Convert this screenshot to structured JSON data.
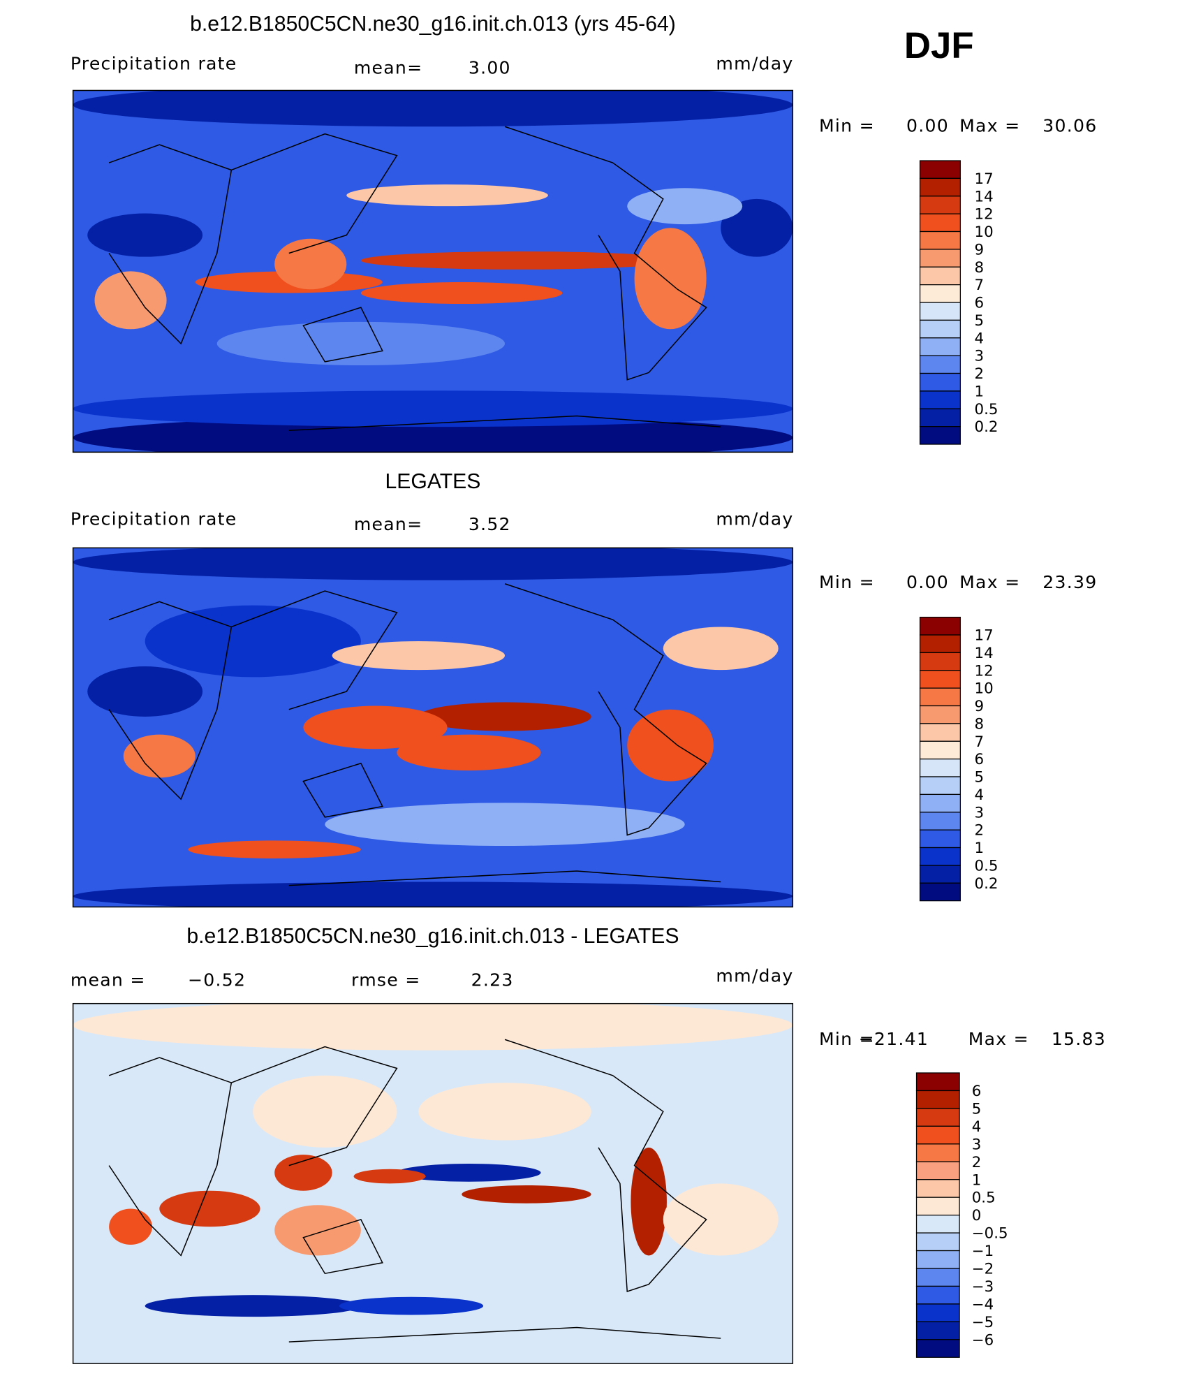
{
  "season": "DJF",
  "panels": [
    {
      "title": "b.e12.B1850C5CN.ne30_g16.init.ch.013 (yrs 45-64)",
      "left_label": "Precipitation  rate",
      "mean_label": "mean=",
      "mean": "3.00",
      "units": "mm/day",
      "min_label": "Min =",
      "min": "0.00",
      "max_label": "Max =",
      "max": "30.06",
      "colorbar": {
        "labels": [
          "17",
          "14",
          "12",
          "10",
          "9",
          "8",
          "7",
          "6",
          "5",
          "4",
          "3",
          "2",
          "1",
          "0.5",
          "0.2"
        ],
        "colors": [
          "#8b0000",
          "#b22000",
          "#d63a10",
          "#f0501e",
          "#f57845",
          "#f79a70",
          "#fbc7a8",
          "#fdebd8",
          "#d6e6f8",
          "#b5cff7",
          "#8fb0f5",
          "#5d86ef",
          "#2e5ae6",
          "#0a33cc",
          "#0420a5",
          "#010c80"
        ]
      }
    },
    {
      "title": "LEGATES",
      "left_label": "Precipitation  rate",
      "mean_label": "mean=",
      "mean": "3.52",
      "units": "mm/day",
      "min_label": "Min =",
      "min": "0.00",
      "max_label": "Max =",
      "max": "23.39",
      "colorbar": {
        "labels": [
          "17",
          "14",
          "12",
          "10",
          "9",
          "8",
          "7",
          "6",
          "5",
          "4",
          "3",
          "2",
          "1",
          "0.5",
          "0.2"
        ],
        "colors": [
          "#8b0000",
          "#b22000",
          "#d63a10",
          "#f0501e",
          "#f57845",
          "#f79a70",
          "#fbc7a8",
          "#fdebd8",
          "#d6e6f8",
          "#b5cff7",
          "#8fb0f5",
          "#5d86ef",
          "#2e5ae6",
          "#0a33cc",
          "#0420a5",
          "#010c80"
        ]
      }
    },
    {
      "title": "b.e12.B1850C5CN.ne30_g16.init.ch.013 - LEGATES",
      "mean_label": "mean =",
      "mean": "−0.52",
      "rmse_label": "rmse =",
      "rmse": "2.23",
      "units": "mm/day",
      "min_label": "Min =",
      "min": "−21.41",
      "max_label": "Max =",
      "max": "15.83",
      "colorbar": {
        "labels": [
          "6",
          "5",
          "4",
          "3",
          "2",
          "1",
          "0.5",
          "0",
          "−0.5",
          "−1",
          "−2",
          "−3",
          "−4",
          "−5",
          "−6"
        ],
        "colors": [
          "#8b0000",
          "#b22000",
          "#d63a10",
          "#f0501e",
          "#f57845",
          "#f8a080",
          "#fbc7a8",
          "#fde8d6",
          "#d8e8f8",
          "#b5cff7",
          "#8fb0f5",
          "#5d86ef",
          "#2e5ae6",
          "#0a33cc",
          "#0420a5",
          "#010c80"
        ]
      }
    }
  ]
}
